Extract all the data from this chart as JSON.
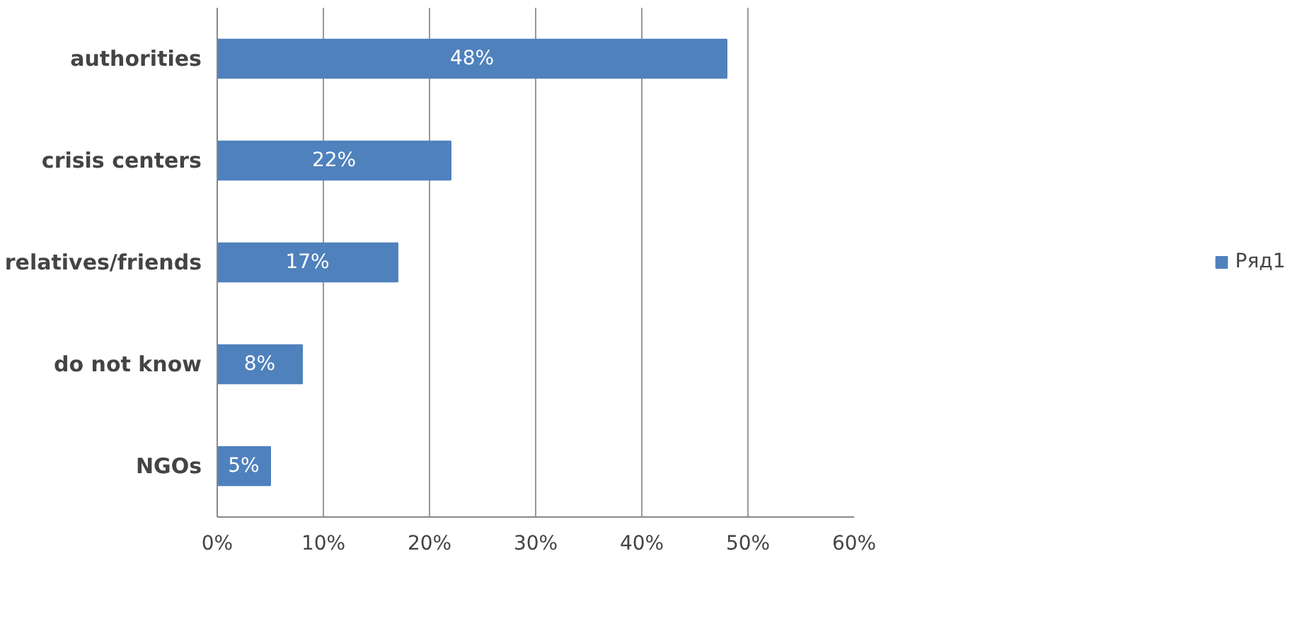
{
  "chart_data": {
    "type": "bar",
    "orientation": "horizontal",
    "categories": [
      "authorities",
      "crisis centers",
      "relatives/friends",
      "do not know",
      "NGOs"
    ],
    "series": [
      {
        "name": "Ряд1",
        "color": "#4f81bd",
        "values": [
          48,
          22,
          17,
          8,
          5
        ],
        "value_labels": [
          "48%",
          "22%",
          "17%",
          "8%",
          "5%"
        ]
      }
    ],
    "xlim": [
      0,
      60
    ],
    "xticks": [
      {
        "value": 0,
        "label": "0%"
      },
      {
        "value": 10,
        "label": "10%"
      },
      {
        "value": 20,
        "label": "20%"
      },
      {
        "value": 30,
        "label": "30%"
      },
      {
        "value": 40,
        "label": "40%"
      },
      {
        "value": 50,
        "label": "50%"
      },
      {
        "value": 60,
        "label": "60%"
      }
    ],
    "grid": "x",
    "legend": "right"
  }
}
